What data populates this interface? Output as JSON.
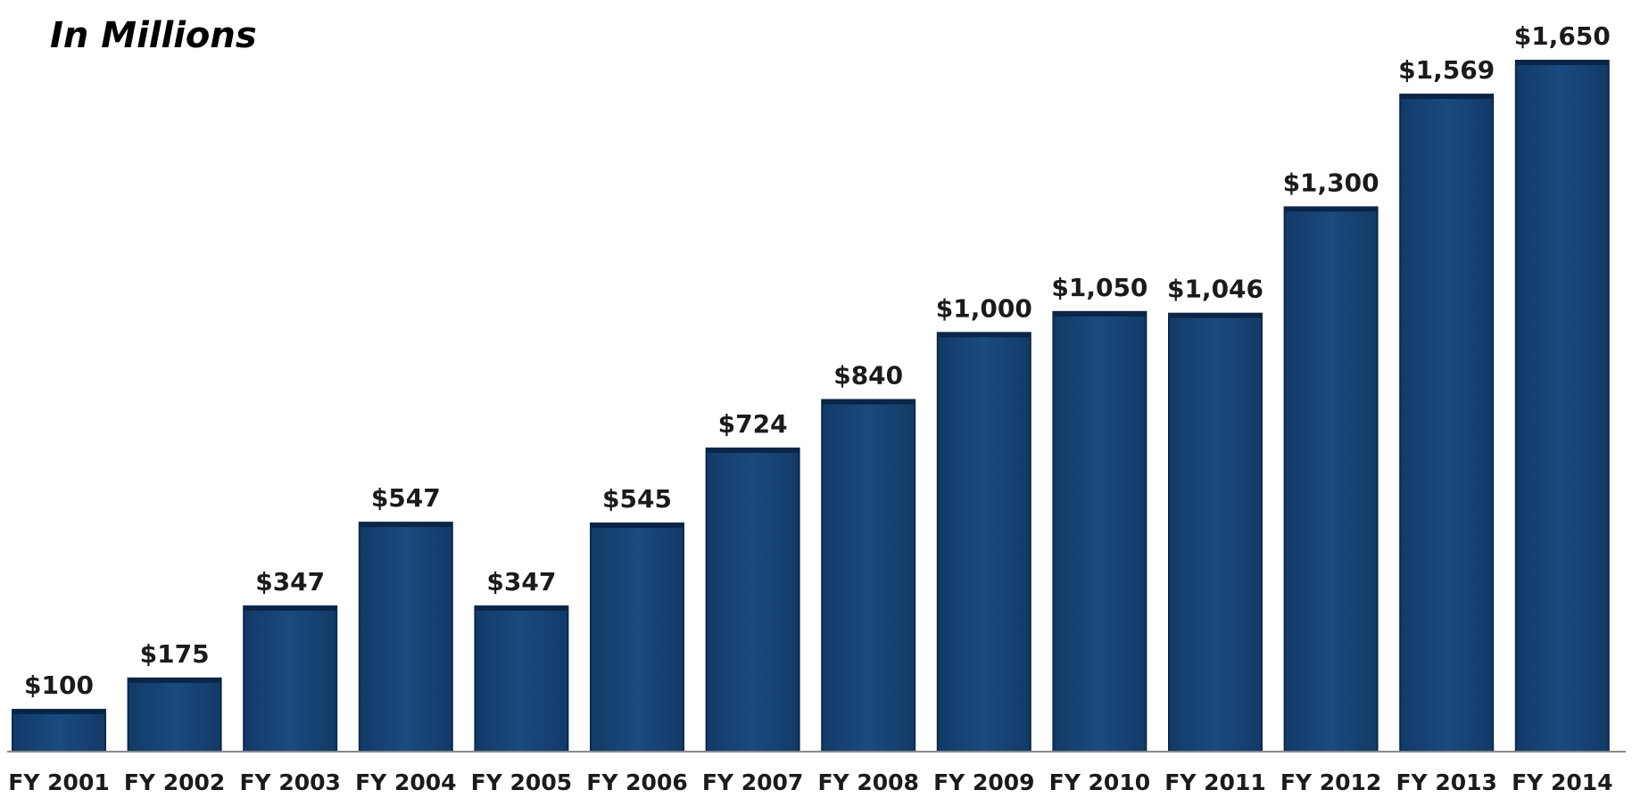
{
  "chart_data": {
    "type": "bar",
    "title": "In Millions",
    "xlabel": "",
    "ylabel": "",
    "categories": [
      "FY 2001",
      "FY 2002",
      "FY 2003",
      "FY 2004",
      "FY 2005",
      "FY 2006",
      "FY 2007",
      "FY 2008",
      "FY 2009",
      "FY 2010",
      "FY 2011",
      "FY 2012",
      "FY 2013",
      "FY 2014"
    ],
    "values": [
      100,
      175,
      347,
      547,
      347,
      545,
      724,
      840,
      1000,
      1050,
      1046,
      1300,
      1569,
      1650
    ],
    "value_labels": [
      "$100",
      "$175",
      "$347",
      "$547",
      "$347",
      "$545",
      "$724",
      "$840",
      "$1,000",
      "$1,050",
      "$1,046",
      "$1,300",
      "$1,569",
      "$1,650"
    ],
    "ylim": [
      0,
      1650
    ],
    "grid": false,
    "legend": "none",
    "bar_color": "#16406f",
    "bar_edge_color": "#0c2a4d"
  }
}
